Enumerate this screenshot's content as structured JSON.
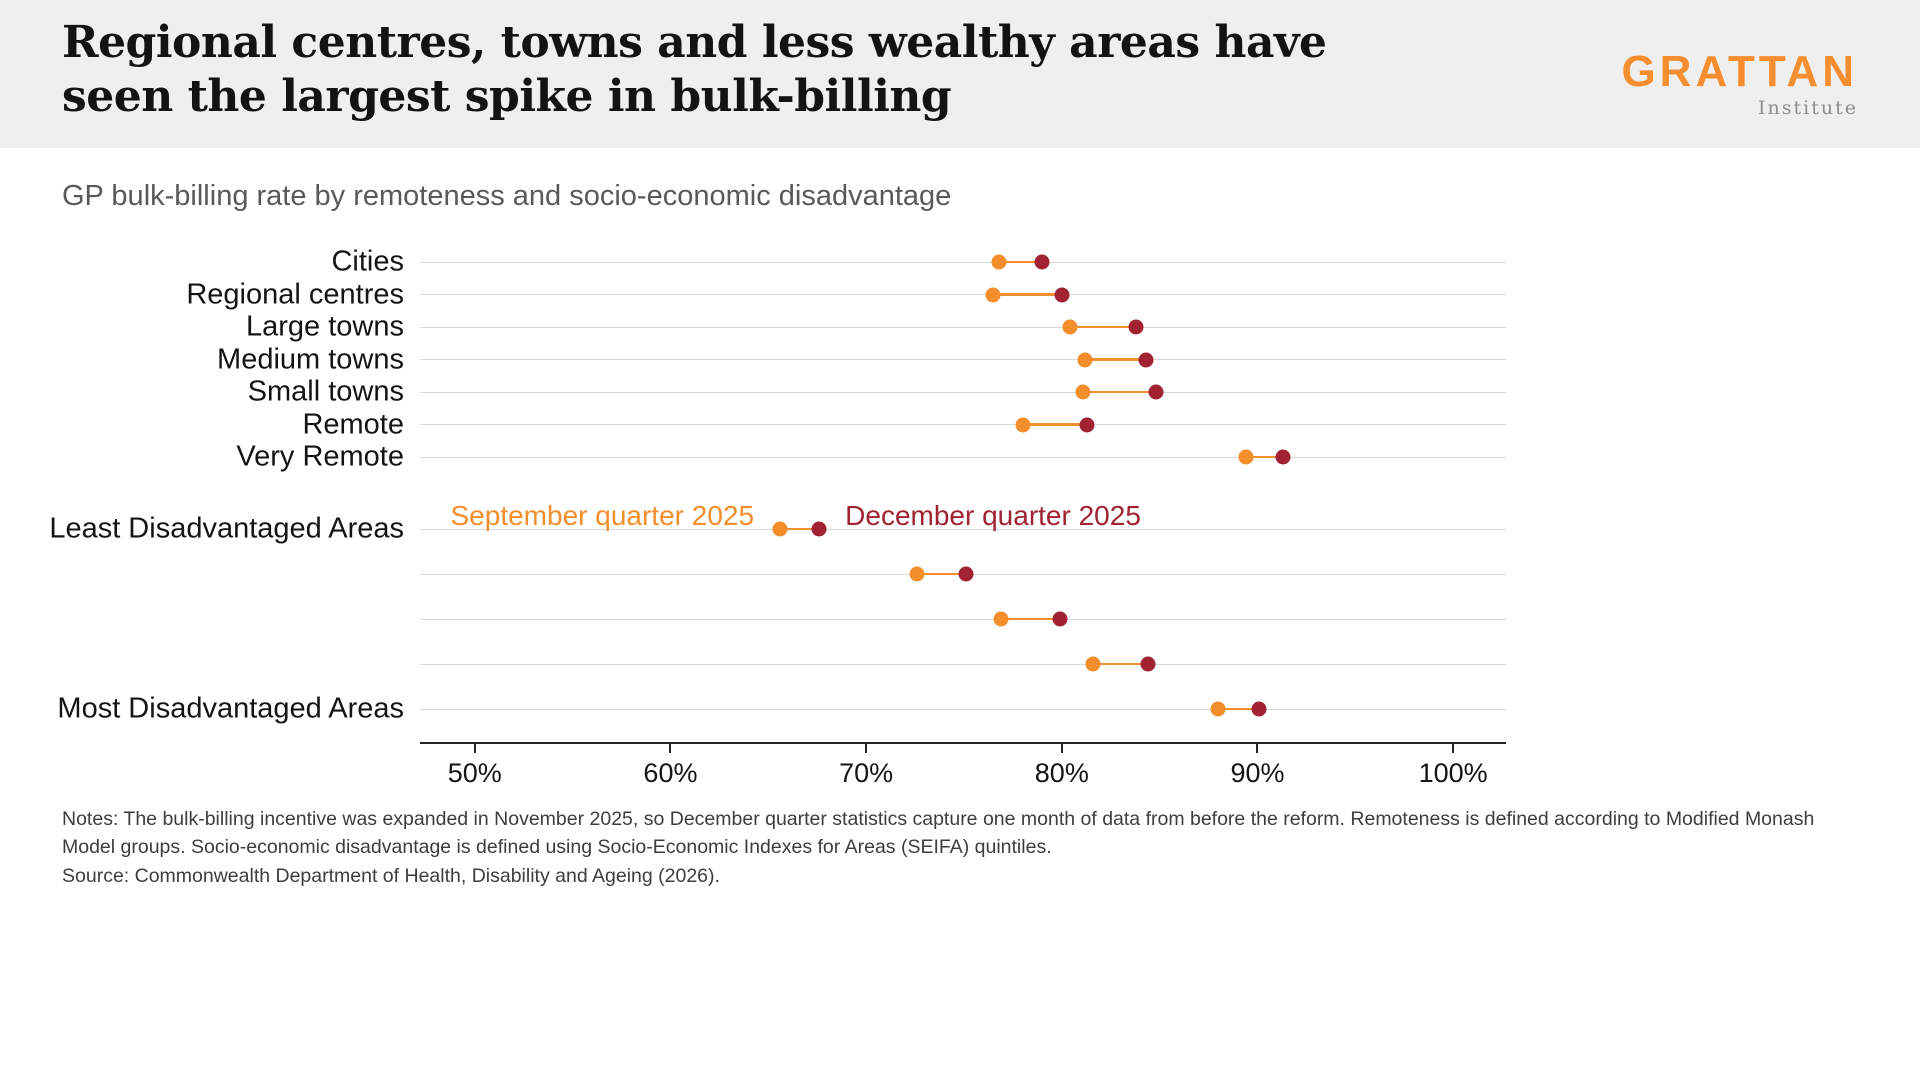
{
  "header": {
    "title": "Regional centres, towns and less wealthy areas have\nseen the largest spike in bulk-billing",
    "logo": {
      "wordmark": "GRATTAN",
      "institute": "Institute"
    }
  },
  "subtitle": "GP bulk-billing rate by remoteness and socio-economic disadvantage",
  "chart_data": {
    "type": "dumbbell",
    "title": "GP bulk-billing rate by remoteness and socio-economic disadvantage",
    "x_axis": {
      "min": 47.2,
      "max": 102.7,
      "ticks": [
        50,
        60,
        70,
        80,
        90,
        100
      ],
      "tick_suffix": "%",
      "grid": true
    },
    "series": [
      {
        "key": "sep",
        "name": "September quarter 2025",
        "color": "#F28E2B"
      },
      {
        "key": "dec",
        "name": "December quarter 2025",
        "color": "#A02233"
      }
    ],
    "legend_row": "Least Disadvantaged Areas",
    "rows": [
      {
        "group": "remoteness",
        "label": "Cities",
        "sep": 76.8,
        "dec": 79.0
      },
      {
        "group": "remoteness",
        "label": "Regional centres",
        "sep": 76.5,
        "dec": 80.0
      },
      {
        "group": "remoteness",
        "label": "Large towns",
        "sep": 80.4,
        "dec": 83.8
      },
      {
        "group": "remoteness",
        "label": "Medium towns",
        "sep": 81.2,
        "dec": 84.3
      },
      {
        "group": "remoteness",
        "label": "Small towns",
        "sep": 81.1,
        "dec": 84.8
      },
      {
        "group": "remoteness",
        "label": "Remote",
        "sep": 78.0,
        "dec": 81.3
      },
      {
        "group": "remoteness",
        "label": "Very Remote",
        "sep": 89.4,
        "dec": 91.3
      },
      {
        "group": "disadvantage",
        "label": "Least Disadvantaged Areas",
        "sep": 65.6,
        "dec": 67.6
      },
      {
        "group": "disadvantage",
        "label": "",
        "sep": 72.6,
        "dec": 75.1
      },
      {
        "group": "disadvantage",
        "label": "",
        "sep": 76.9,
        "dec": 79.9
      },
      {
        "group": "disadvantage",
        "label": "",
        "sep": 81.6,
        "dec": 84.4
      },
      {
        "group": "disadvantage",
        "label": "Most Disadvantaged Areas",
        "sep": 88.0,
        "dec": 90.1
      }
    ]
  },
  "footer": {
    "notes": "Notes: The bulk-billing incentive was expanded in November 2025, so December quarter statistics capture one month of data from before the reform. Remoteness is defined according to Modified Monash Model groups. Socio-economic disadvantage is defined using Socio-Economic Indexes for Areas (SEIFA) quintiles.",
    "source": "Source: Commonwealth Department of Health, Disability and Ageing (2026)."
  }
}
